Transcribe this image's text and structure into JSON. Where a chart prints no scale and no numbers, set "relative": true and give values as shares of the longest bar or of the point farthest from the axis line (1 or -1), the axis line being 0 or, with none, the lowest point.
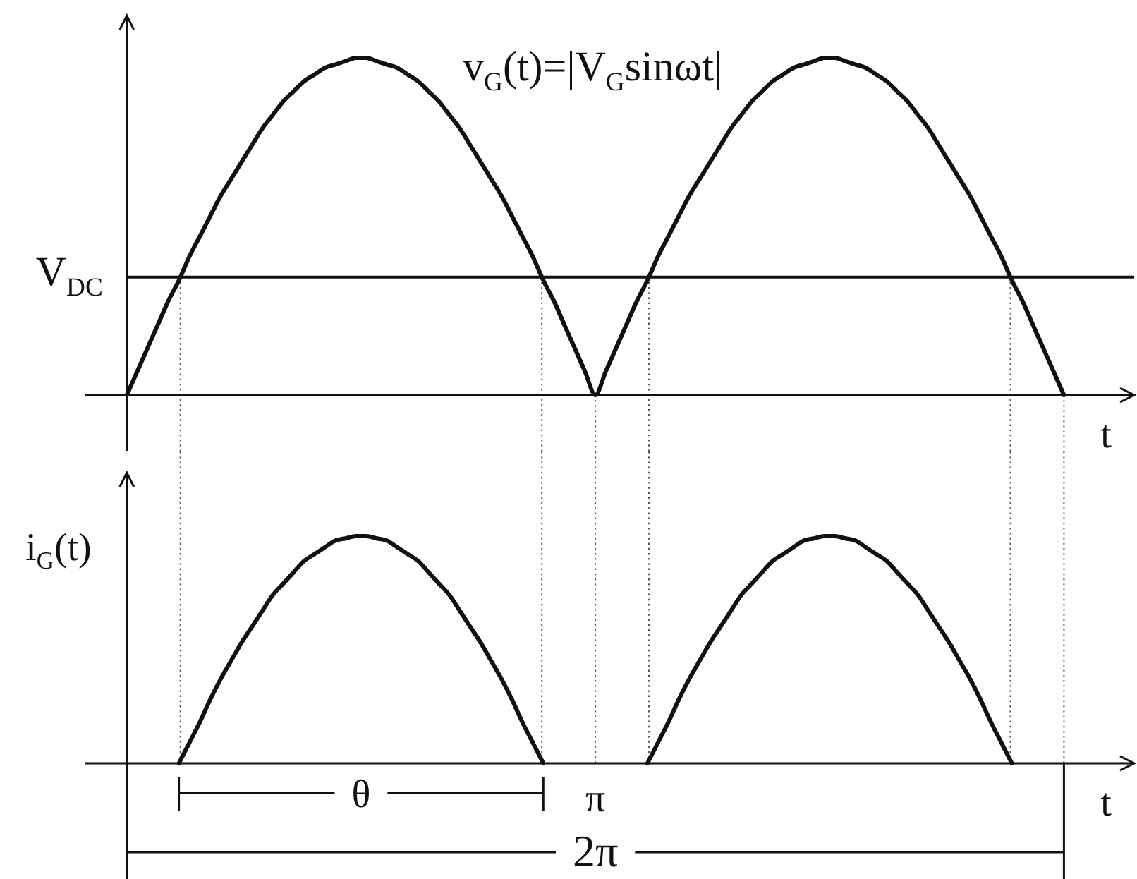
{
  "chart_data": [
    {
      "type": "line",
      "title": "v$_{G}$(t)=|V$_{G}$sinωt|",
      "xlabel": "t",
      "relative": true,
      "categories": [
        null,
        null,
        null,
        null,
        null,
        null,
        null,
        null,
        null,
        null,
        null,
        null,
        null,
        null,
        null,
        null,
        null,
        null,
        null,
        null,
        null,
        null,
        null,
        null,
        null,
        null,
        null,
        null,
        null,
        null,
        null,
        null,
        null,
        null,
        null,
        null,
        null,
        null,
        null,
        null,
        null,
        null,
        null,
        null,
        null,
        null,
        null,
        null,
        null,
        null,
        null,
        null,
        null,
        null,
        null,
        null,
        null,
        null,
        null,
        null,
        null,
        null,
        null,
        null,
        null,
        null,
        null,
        null,
        null,
        null,
        null,
        null,
        null,
        null,
        null,
        null,
        null,
        null,
        null,
        null,
        null,
        null,
        null,
        null,
        null,
        null,
        null,
        null,
        null,
        null,
        null
      ],
      "series": [
        {
          "color": "#111111",
          "values": [
            0,
            0.07,
            0.14,
            0.21,
            0.28,
            0.34,
            0.41,
            0.47,
            0.53,
            0.59,
            0.64,
            0.69,
            0.74,
            0.79,
            0.83,
            0.87,
            0.9,
            0.93,
            0.95,
            0.97,
            0.98,
            0.99,
            1,
            1,
            0.99,
            0.98,
            0.97,
            0.95,
            0.93,
            0.9,
            0.87,
            0.83,
            0.79,
            0.74,
            0.69,
            0.64,
            0.59,
            0.53,
            0.47,
            0.41,
            0.34,
            0.28,
            0.21,
            0.14,
            0.07,
            0,
            0.07,
            0.14,
            0.21,
            0.28,
            0.34,
            0.41,
            0.47,
            0.53,
            0.59,
            0.64,
            0.69,
            0.74,
            0.79,
            0.83,
            0.87,
            0.9,
            0.93,
            0.95,
            0.97,
            0.98,
            0.99,
            1,
            1,
            0.99,
            0.98,
            0.97,
            0.95,
            0.93,
            0.9,
            0.87,
            0.83,
            0.79,
            0.74,
            0.69,
            0.64,
            0.59,
            0.53,
            0.47,
            0.41,
            0.34,
            0.28,
            0.21,
            0.14,
            0.07,
            0
          ]
        }
      ],
      "ref_lines": [
        {
          "axis": "y",
          "value": 0.35,
          "label": "V$_{DC}$",
          "color": "#111111",
          "line_style": "solid"
        }
      ]
    },
    {
      "type": "line",
      "ylabel": "i$_{G}$(t)",
      "xlabel": "t",
      "relative": true,
      "categories": [
        null,
        null,
        null,
        null,
        null,
        null,
        null,
        null,
        null,
        null,
        null,
        null,
        null,
        null,
        null,
        null,
        null,
        null,
        null,
        null,
        null,
        null,
        null,
        null,
        null,
        null,
        null,
        null,
        null,
        null,
        null,
        null,
        null,
        null,
        null,
        null,
        null,
        null,
        null,
        null,
        null,
        null,
        null,
        null,
        null,
        null,
        null,
        null,
        null,
        null,
        null,
        null,
        null,
        null,
        null,
        null,
        null,
        null,
        null,
        null,
        null,
        null,
        null,
        null,
        null,
        null,
        null,
        null,
        null,
        null,
        null,
        null,
        null,
        null,
        null,
        null,
        null,
        null,
        null,
        null,
        null,
        null,
        null,
        null,
        null,
        null,
        null,
        null,
        null,
        null,
        null
      ],
      "series": [
        {
          "color": "#111111",
          "values": [
            null,
            null,
            null,
            null,
            null,
            0,
            0.09,
            0.18,
            0.28,
            0.37,
            0.45,
            0.53,
            0.6,
            0.67,
            0.74,
            0.79,
            0.84,
            0.89,
            0.92,
            0.95,
            0.98,
            0.99,
            1,
            1,
            0.99,
            0.98,
            0.95,
            0.92,
            0.89,
            0.84,
            0.79,
            0.74,
            0.67,
            0.6,
            0.53,
            0.45,
            0.37,
            0.28,
            0.18,
            0.09,
            0,
            null,
            null,
            null,
            null,
            null,
            null,
            null,
            null,
            null,
            0,
            0.09,
            0.18,
            0.28,
            0.37,
            0.45,
            0.53,
            0.6,
            0.67,
            0.74,
            0.79,
            0.84,
            0.89,
            0.92,
            0.95,
            0.98,
            0.99,
            1,
            1,
            0.99,
            0.98,
            0.95,
            0.92,
            0.89,
            0.84,
            0.79,
            0.74,
            0.67,
            0.6,
            0.53,
            0.45,
            0.37,
            0.28,
            0.18,
            0.09,
            0,
            null,
            null,
            null,
            null,
            null
          ]
        }
      ],
      "annotations": [
        "θ",
        "π",
        "2π"
      ]
    }
  ]
}
